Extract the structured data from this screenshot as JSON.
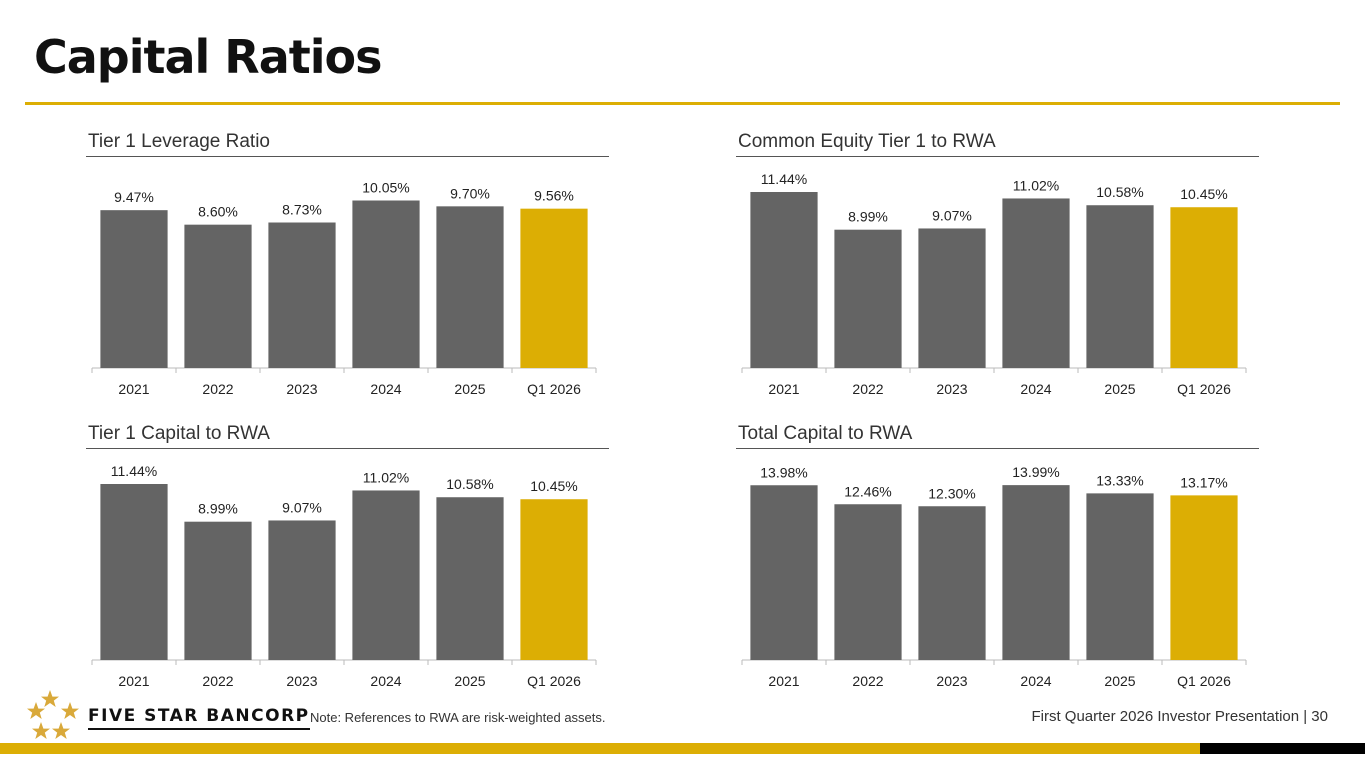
{
  "page": {
    "title": "Capital Ratios",
    "note": "Note: References to RWA are risk-weighted assets.",
    "brand": "FIVE STAR BANCORP",
    "footer": "First Quarter 2026 Investor Presentation |  30",
    "colors": {
      "accent": "#dcae04",
      "bar": "#646464",
      "text": "#222222"
    }
  },
  "chart_data": [
    {
      "type": "bar",
      "title": "Tier 1 Leverage Ratio",
      "categories": [
        "2021",
        "2022",
        "2023",
        "2024",
        "2025",
        "Q1 2026"
      ],
      "values": [
        9.47,
        8.6,
        8.73,
        10.05,
        9.7,
        9.56
      ],
      "labels": [
        "9.47%",
        "8.60%",
        "8.73%",
        "10.05%",
        "9.70%",
        "9.56%"
      ],
      "ylim": [
        0,
        12
      ],
      "highlight": "Q1 2026",
      "grid": false
    },
    {
      "type": "bar",
      "title": "Common Equity Tier 1 to RWA",
      "categories": [
        "2021",
        "2022",
        "2023",
        "2024",
        "2025",
        "Q1 2026"
      ],
      "values": [
        11.44,
        8.99,
        9.07,
        11.02,
        10.58,
        10.45
      ],
      "labels": [
        "11.44%",
        "8.99%",
        "9.07%",
        "11.02%",
        "10.58%",
        "10.45%"
      ],
      "ylim": [
        0,
        13
      ],
      "highlight": "Q1 2026",
      "grid": false
    },
    {
      "type": "bar",
      "title": "Tier 1 Capital to RWA",
      "categories": [
        "2021",
        "2022",
        "2023",
        "2024",
        "2025",
        "Q1 2026"
      ],
      "values": [
        11.44,
        8.99,
        9.07,
        11.02,
        10.58,
        10.45
      ],
      "labels": [
        "11.44%",
        "8.99%",
        "9.07%",
        "11.02%",
        "10.58%",
        "10.45%"
      ],
      "ylim": [
        0,
        13
      ],
      "highlight": "Q1 2026",
      "grid": false
    },
    {
      "type": "bar",
      "title": "Total Capital to RWA",
      "categories": [
        "2021",
        "2022",
        "2023",
        "2024",
        "2025",
        "Q1 2026"
      ],
      "values": [
        13.98,
        12.46,
        12.3,
        13.99,
        13.33,
        13.17
      ],
      "labels": [
        "13.98%",
        "12.46%",
        "12.30%",
        "13.99%",
        "13.33%",
        "13.17%"
      ],
      "ylim": [
        0,
        16
      ],
      "highlight": "Q1 2026",
      "grid": false
    }
  ]
}
